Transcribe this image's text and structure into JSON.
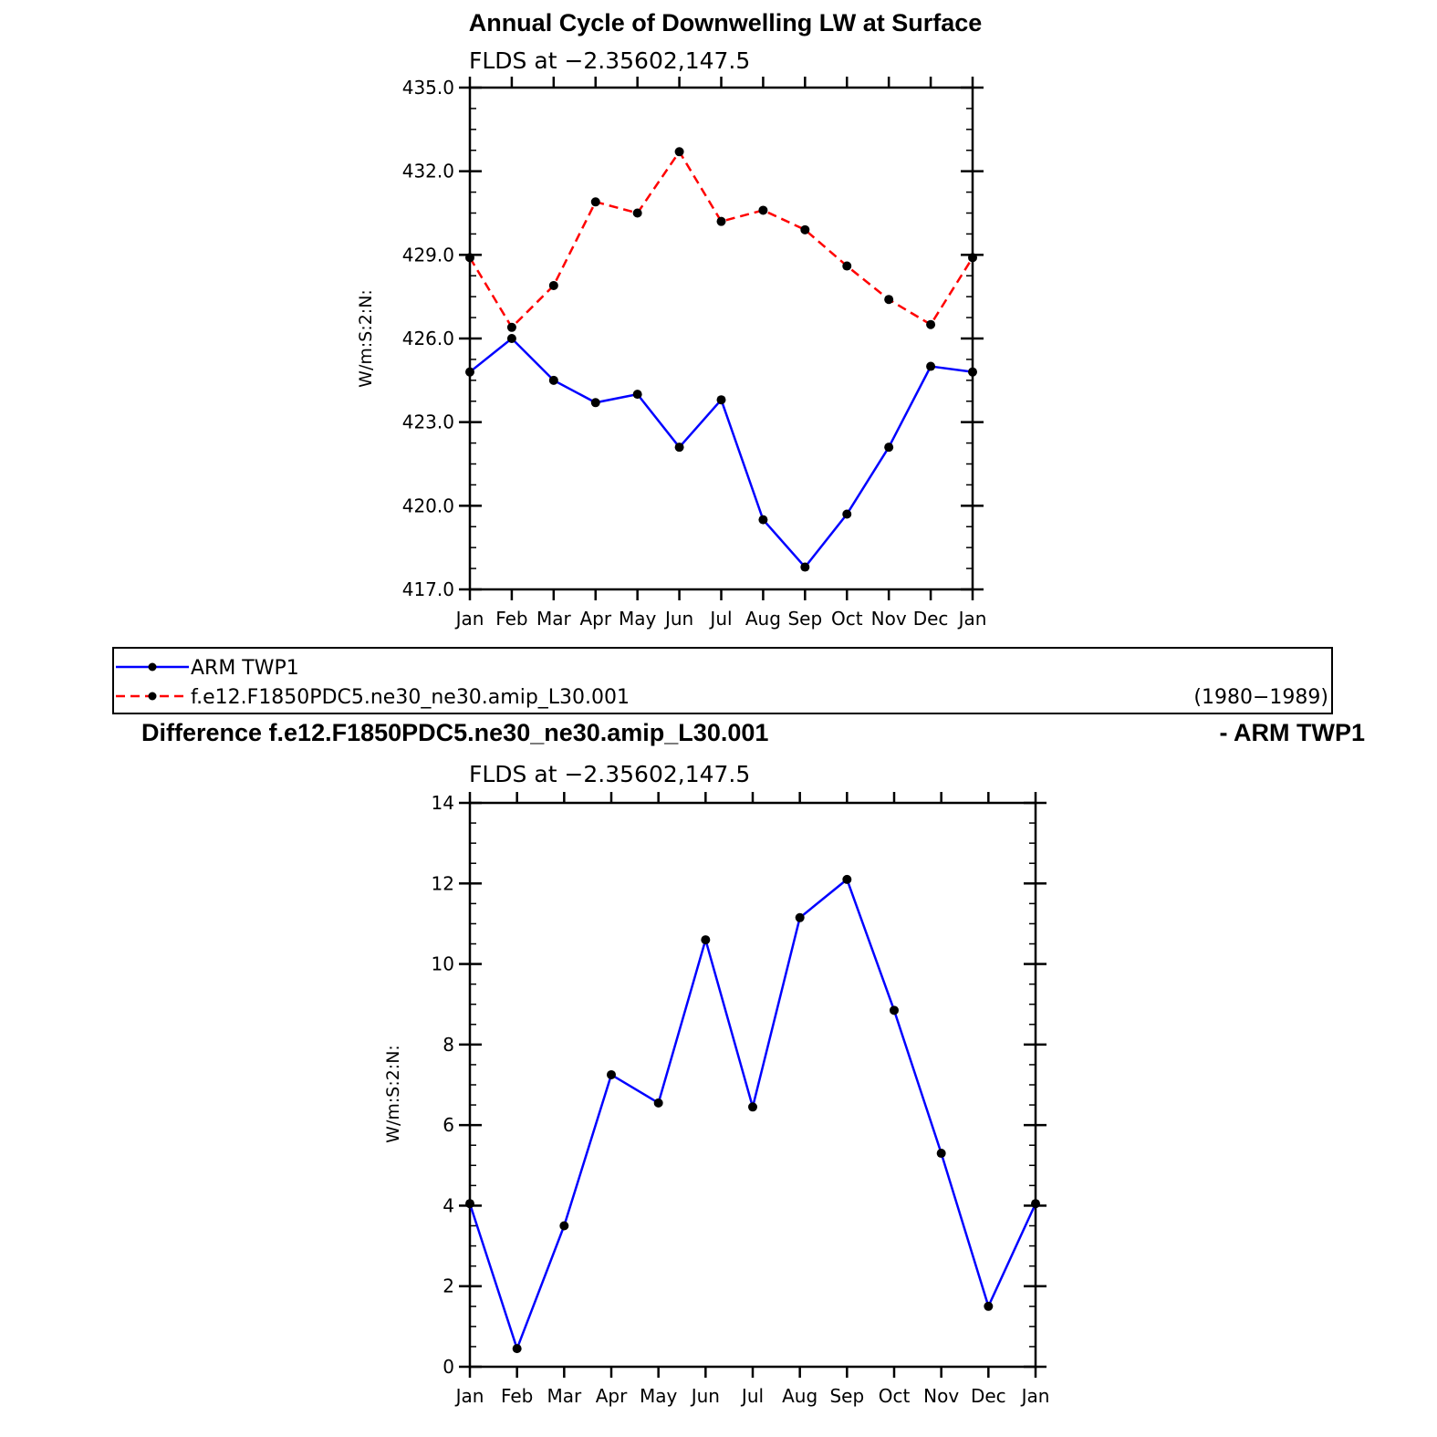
{
  "chart_data": [
    {
      "type": "line",
      "title": "Annual Cycle of Downwelling LW at Surface",
      "subtitle": "FLDS at −2.35602,147.5",
      "ylabel": "W/m:S:2:N:",
      "ylim": [
        417.0,
        435.0
      ],
      "yticks": [
        "417.0",
        "420.0",
        "423.0",
        "426.0",
        "429.0",
        "432.0",
        "435.0"
      ],
      "categories": [
        "Jan",
        "Feb",
        "Mar",
        "Apr",
        "May",
        "Jun",
        "Jul",
        "Aug",
        "Sep",
        "Oct",
        "Nov",
        "Dec",
        "Jan"
      ],
      "series": [
        {
          "name": "ARM TWP1",
          "color": "#0000ff",
          "style": "solid",
          "values": [
            424.8,
            426.0,
            424.5,
            423.7,
            424.0,
            422.1,
            423.8,
            419.5,
            417.8,
            419.7,
            422.1,
            425.0,
            424.8
          ]
        },
        {
          "name": "f.e12.F1850PDC5.ne30_ne30.amip_L30.001",
          "color": "#ff0000",
          "style": "dashed",
          "values": [
            428.9,
            426.4,
            427.9,
            430.9,
            430.5,
            432.7,
            430.2,
            430.6,
            429.9,
            428.6,
            427.4,
            426.5,
            428.9
          ]
        }
      ],
      "legend": {
        "placement": "bottom",
        "entries": [
          "ARM TWP1",
          "f.e12.F1850PDC5.ne30_ne30.amip_L30.001"
        ],
        "period": "(1980−1989)"
      }
    },
    {
      "type": "line",
      "title": "Difference f.e12.F1850PDC5.ne30_ne30.amip_L30.001",
      "title_right": "- ARM TWP1",
      "subtitle": "FLDS at −2.35602,147.5",
      "ylabel": "W/m:S:2:N:",
      "ylim": [
        0,
        14
      ],
      "yticks": [
        "0",
        "2",
        "4",
        "6",
        "8",
        "10",
        "12",
        "14"
      ],
      "categories": [
        "Jan",
        "Feb",
        "Mar",
        "Apr",
        "May",
        "Jun",
        "Jul",
        "Aug",
        "Sep",
        "Oct",
        "Nov",
        "Dec",
        "Jan"
      ],
      "series": [
        {
          "color": "#0000ff",
          "style": "solid",
          "values": [
            4.05,
            0.45,
            3.5,
            7.25,
            6.55,
            10.6,
            6.45,
            11.15,
            12.1,
            8.85,
            5.3,
            1.5,
            4.05
          ]
        }
      ]
    }
  ]
}
